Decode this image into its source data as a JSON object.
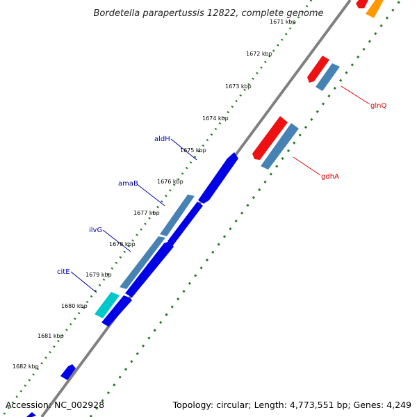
{
  "title": "Bordetella parapertussis 12822, complete genome",
  "footer": {
    "accession": "Accession: NC_002928",
    "summary": "Topology: circular; Length: 4,773,551 bp; Genes: 4,249"
  },
  "ticks": [
    "1671 kbp",
    "1672 kbp",
    "1673 kbp",
    "1674 kbp",
    "1675 kbp",
    "1676 kbp",
    "1677 kbp",
    "1678 kbp",
    "1679 kbp",
    "1680 kbp",
    "1681 kbp",
    "1682 kbp"
  ],
  "genes_left": [
    "aldH",
    "amaB",
    "ilvG",
    "citE"
  ],
  "genes_right": [
    "glnQ",
    "gdhA"
  ],
  "colors": {
    "backbone": "#808080",
    "dots": "#1f7a1f",
    "forward_gene": "#0000e6",
    "forward_alt": "#4682b4",
    "forward_cyan": "#00c8c8",
    "reverse_gene": "#ee1111",
    "reverse_alt": "#4682b4",
    "orange": "#ff9900",
    "label_left": "#0000aa",
    "label_right": "#dd0000"
  }
}
